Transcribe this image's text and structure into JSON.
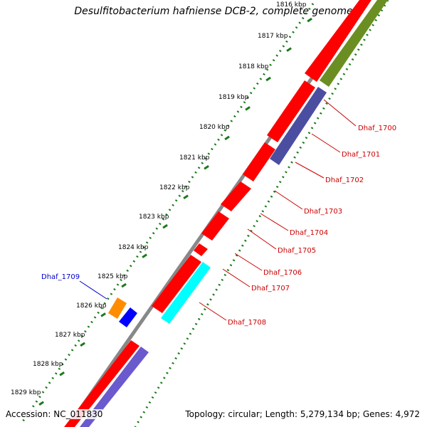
{
  "title": "Desulfitobacterium hafniense DCB-2, complete genome",
  "footer": {
    "accession": "Accession: NC_011830",
    "topology": "Topology: circular; Length: 5,279,134 bp; Genes: 4,972"
  },
  "colors": {
    "backbone": "#8a8a8a",
    "cds": "#ff0000",
    "cds_dark": "#c00000",
    "olive": "#6b8e23",
    "slate": "#4b4ea0",
    "cyan": "#00ffff",
    "orange": "#ff8c00",
    "blue": "#0000ff",
    "tick": "#1a7a1a",
    "label_red": "#cc0000",
    "label_blue": "#0000cc"
  },
  "ticks": [
    {
      "label": "1816 kbp"
    },
    {
      "label": "1817 kbp"
    },
    {
      "label": "1818 kbp"
    },
    {
      "label": "1819 kbp"
    },
    {
      "label": "1820 kbp"
    },
    {
      "label": "1821 kbp"
    },
    {
      "label": "1822 kbp"
    },
    {
      "label": "1823 kbp"
    },
    {
      "label": "1824 kbp"
    },
    {
      "label": "1825 kbp"
    },
    {
      "label": "1826 kbp"
    },
    {
      "label": "1827 kbp"
    },
    {
      "label": "1828 kbp"
    },
    {
      "label": "1829 kbp"
    }
  ],
  "gene_labels": [
    {
      "text": "Dhaf_1700"
    },
    {
      "text": "Dhaf_1701"
    },
    {
      "text": "Dhaf_1702"
    },
    {
      "text": "Dhaf_1703"
    },
    {
      "text": "Dhaf_1704"
    },
    {
      "text": "Dhaf_1705"
    },
    {
      "text": "Dhaf_1706"
    },
    {
      "text": "Dhaf_1707"
    },
    {
      "text": "Dhaf_1708"
    },
    {
      "text": "Dhaf_1709"
    }
  ]
}
